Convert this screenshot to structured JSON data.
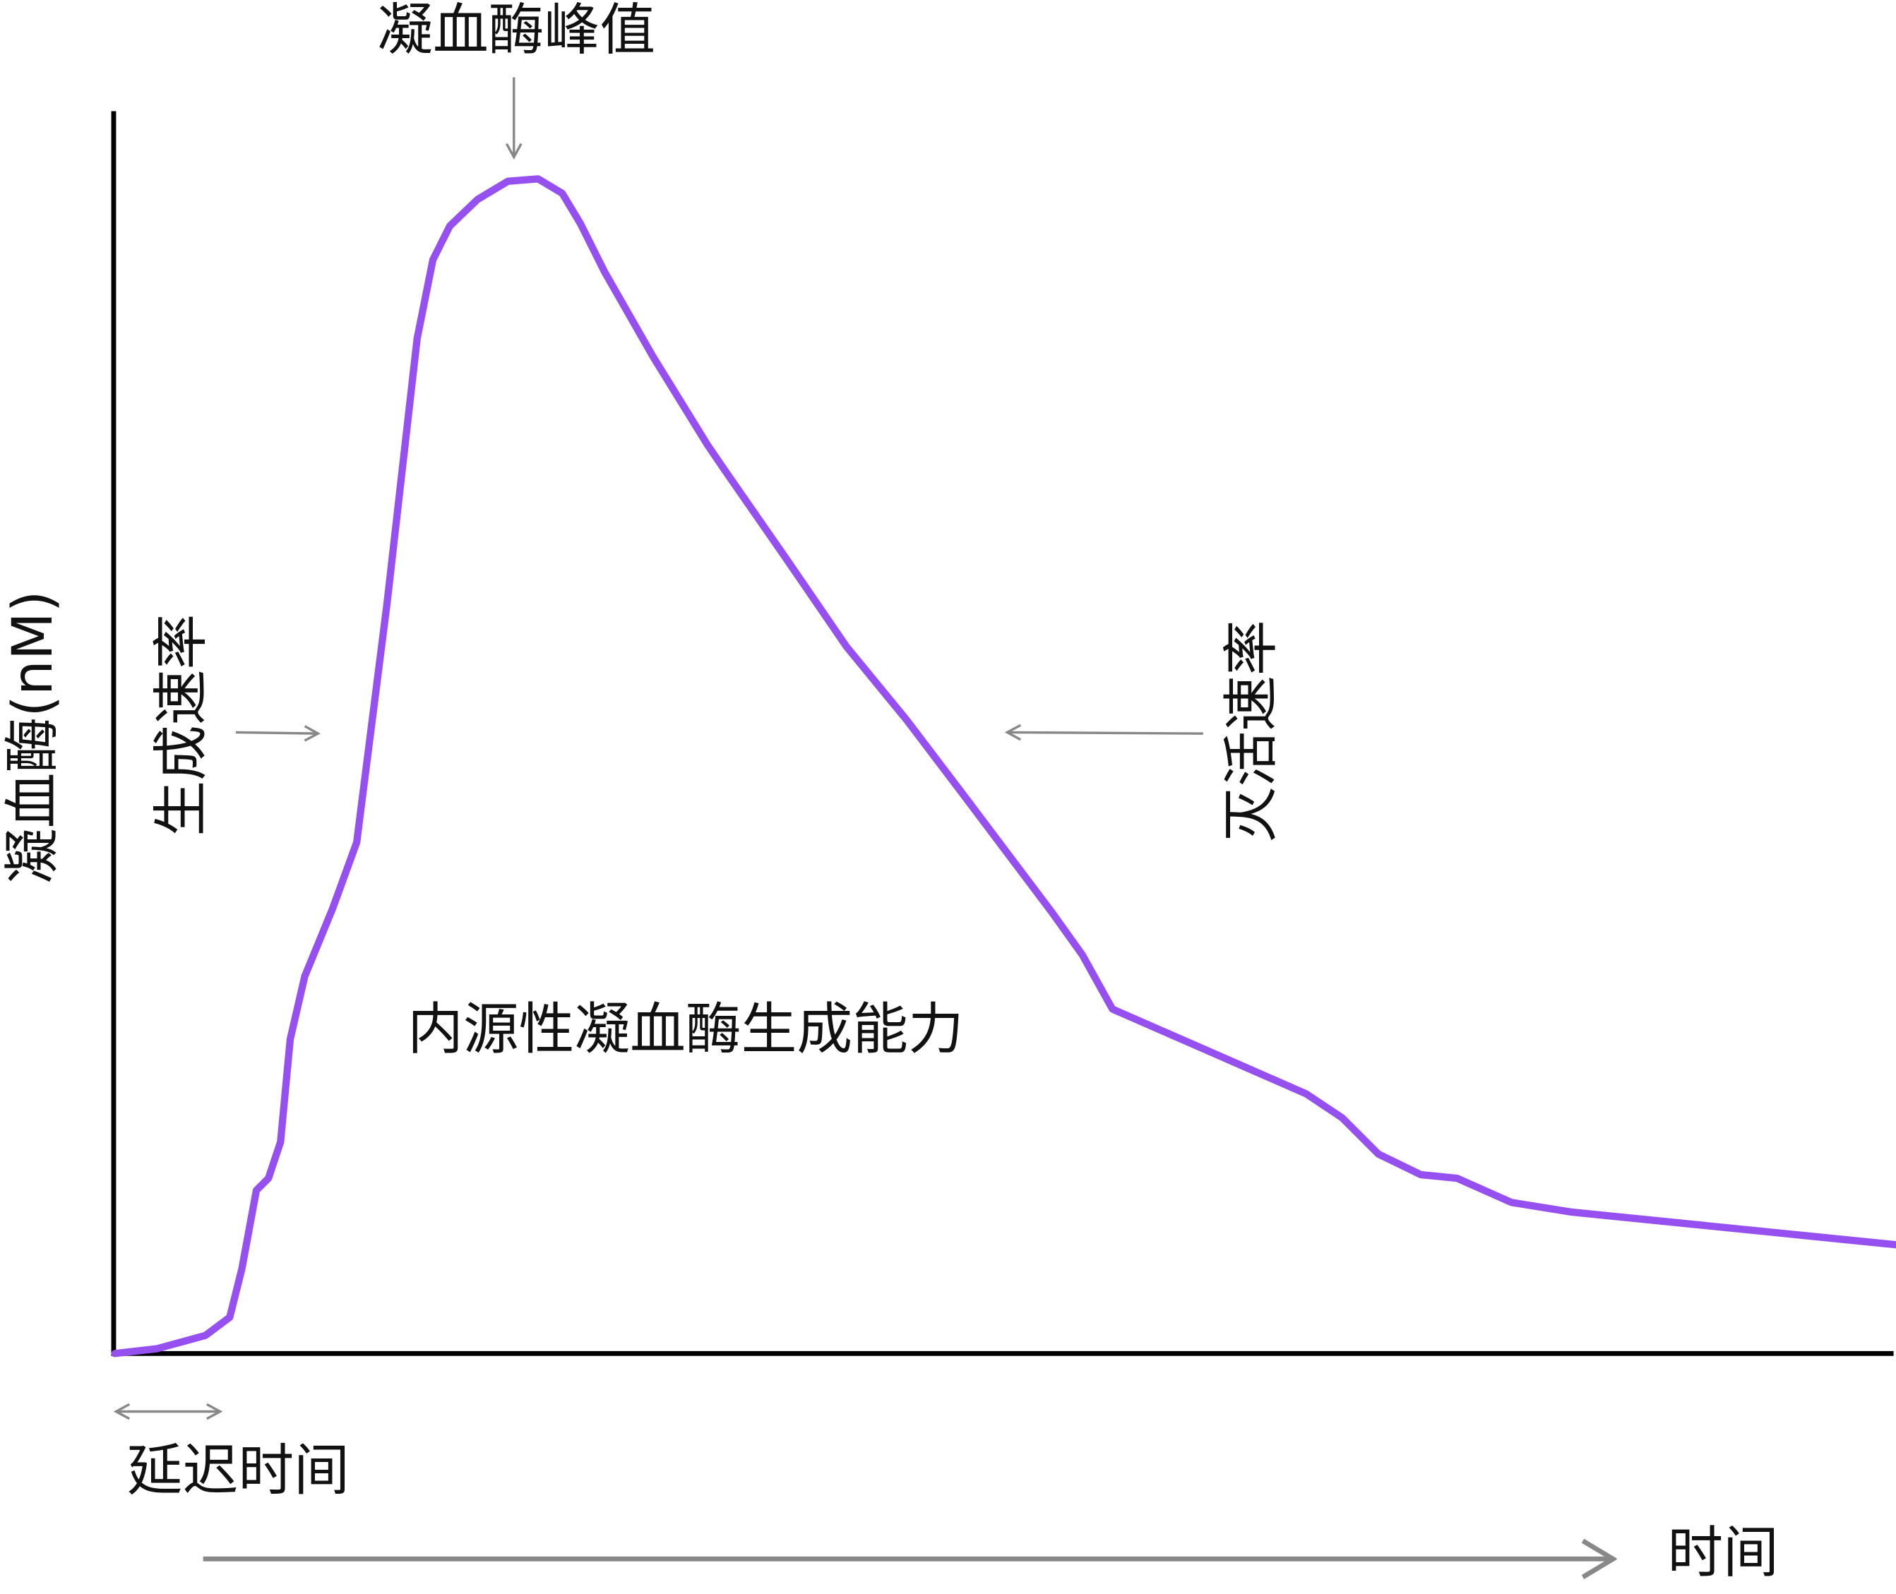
{
  "labels": {
    "peak": "凝血酶峰值",
    "y_axis": "凝血酶(nM)",
    "generation_rate": "生成速率",
    "inactivation_rate": "灭活速率",
    "etp": "内源性凝血酶生成能力",
    "lag_time": "延迟时间",
    "x_axis": "时间"
  }
}
